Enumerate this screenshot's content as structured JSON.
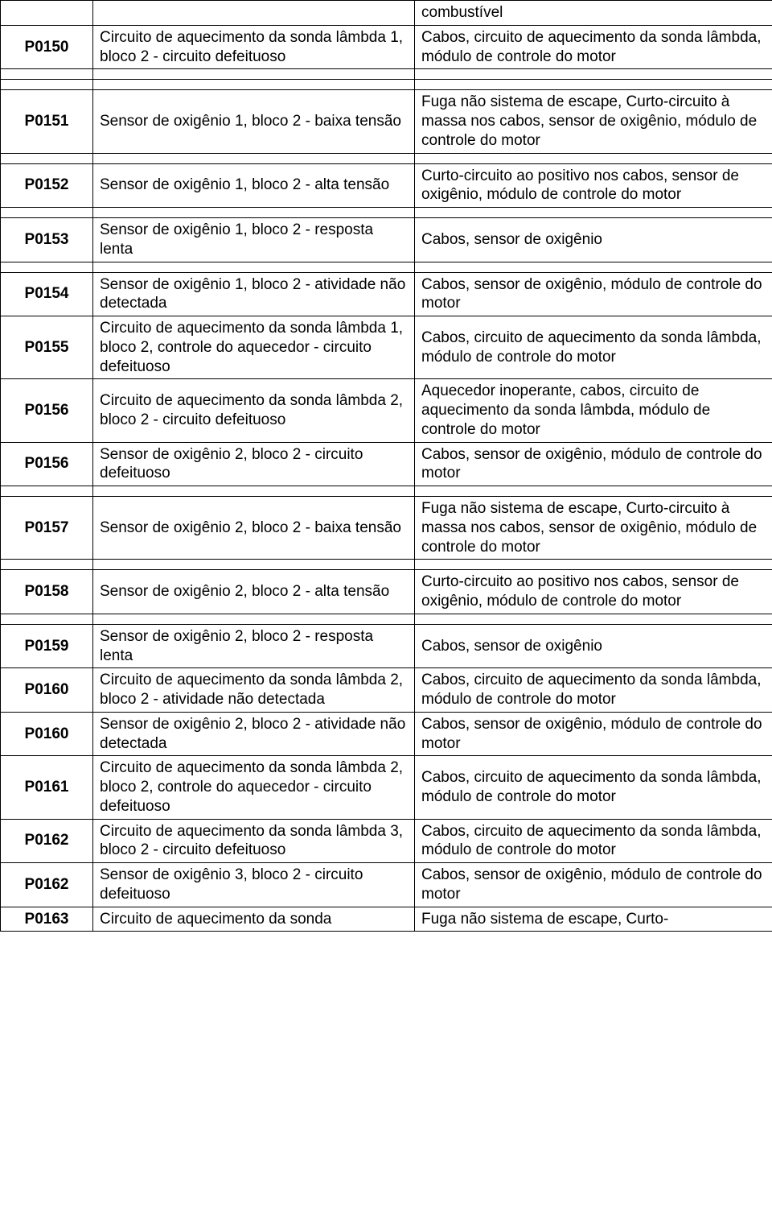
{
  "rows": [
    {
      "type": "data",
      "code": "",
      "desc": "",
      "cause": "combustível"
    },
    {
      "type": "data",
      "code": "P0150",
      "desc": "Circuito de aquecimento da sonda lâmbda 1, bloco 2 - circuito defeituoso",
      "cause": "Cabos, circuito de aquecimento da sonda lâmbda, módulo de controle do motor"
    },
    {
      "type": "spacer"
    },
    {
      "type": "spacer"
    },
    {
      "type": "data",
      "code": "P0151",
      "desc": "Sensor de oxigênio 1, bloco 2 - baixa tensão",
      "cause": "Fuga não sistema de escape, Curto-circuito à massa nos cabos, sensor de oxigênio, módulo de controle do motor"
    },
    {
      "type": "spacer"
    },
    {
      "type": "data",
      "code": "P0152",
      "desc": "Sensor de oxigênio 1, bloco 2 - alta tensão",
      "cause": "Curto-circuito ao positivo nos cabos, sensor de oxigênio, módulo de controle do motor"
    },
    {
      "type": "spacer"
    },
    {
      "type": "data",
      "code": "P0153",
      "desc": "Sensor de oxigênio 1, bloco 2 - resposta lenta",
      "cause": "Cabos, sensor de oxigênio"
    },
    {
      "type": "spacer"
    },
    {
      "type": "data",
      "code": "P0154",
      "desc": "Sensor de oxigênio 1, bloco 2 - atividade não detectada",
      "cause": "Cabos, sensor de oxigênio, módulo de controle do motor"
    },
    {
      "type": "data",
      "code": "P0155",
      "desc": "Circuito de aquecimento da sonda lâmbda 1, bloco 2, controle do aquecedor - circuito defeituoso",
      "cause": "Cabos, circuito de aquecimento da sonda lâmbda, módulo de controle do motor"
    },
    {
      "type": "data",
      "code": "P0156",
      "desc": "Circuito de aquecimento da sonda lâmbda 2, bloco 2 - circuito defeituoso",
      "cause": "Aquecedor inoperante, cabos, circuito de aquecimento da sonda lâmbda, módulo de controle do motor"
    },
    {
      "type": "data",
      "code": "P0156",
      "desc": "Sensor de oxigênio 2, bloco 2 - circuito defeituoso",
      "cause": "Cabos, sensor de oxigênio, módulo de controle do motor"
    },
    {
      "type": "spacer"
    },
    {
      "type": "data",
      "code": "P0157",
      "desc": "Sensor de oxigênio 2, bloco 2 - baixa tensão",
      "cause": "Fuga não sistema de escape, Curto-circuito à massa nos cabos, sensor de oxigênio, módulo de controle do motor"
    },
    {
      "type": "spacer"
    },
    {
      "type": "data",
      "code": "P0158",
      "desc": "Sensor de oxigênio 2, bloco 2 - alta tensão",
      "cause": "Curto-circuito ao positivo nos cabos, sensor de oxigênio, módulo de controle do motor"
    },
    {
      "type": "spacer"
    },
    {
      "type": "data",
      "code": "P0159",
      "desc": "Sensor de oxigênio 2, bloco 2 - resposta lenta",
      "cause": "Cabos, sensor de oxigênio"
    },
    {
      "type": "data",
      "code": "P0160",
      "desc": "Circuito de aquecimento da sonda lâmbda 2, bloco 2 - atividade não detectada",
      "cause": "Cabos, circuito de aquecimento da sonda lâmbda, módulo de controle do motor"
    },
    {
      "type": "data",
      "code": "P0160",
      "desc": "Sensor de oxigênio 2, bloco 2 - atividade não detectada",
      "cause": "Cabos, sensor de oxigênio, módulo de controle do motor"
    },
    {
      "type": "data",
      "code": "P0161",
      "desc": "Circuito de aquecimento da sonda lâmbda 2, bloco 2, controle do aquecedor - circuito defeituoso",
      "cause": "Cabos, circuito de aquecimento da sonda lâmbda, módulo de controle do motor"
    },
    {
      "type": "data",
      "code": "P0162",
      "desc": "Circuito de aquecimento da sonda lâmbda 3, bloco 2 - circuito defeituoso",
      "cause": "Cabos, circuito de aquecimento da sonda lâmbda, módulo de controle do motor"
    },
    {
      "type": "data",
      "code": "P0162",
      "desc": "Sensor de oxigênio 3, bloco 2 - circuito defeituoso",
      "cause": "Cabos, sensor de oxigênio, módulo de controle do motor"
    },
    {
      "type": "data",
      "code": "P0163",
      "desc": "Circuito de aquecimento da sonda",
      "cause": "Fuga não sistema de escape, Curto-"
    }
  ]
}
